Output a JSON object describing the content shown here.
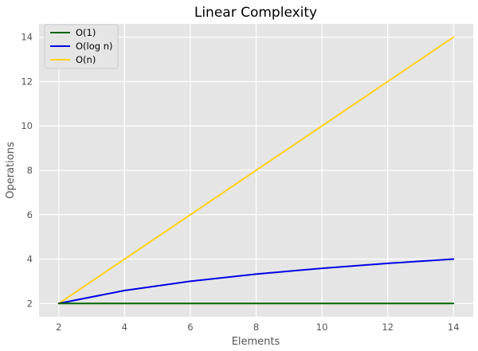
{
  "chart_data": {
    "type": "line",
    "title": "Linear Complexity",
    "xlabel": "Elements",
    "ylabel": "Operations",
    "x": [
      2,
      4,
      6,
      8,
      10,
      12,
      14
    ],
    "xlim": [
      1.4,
      14.6
    ],
    "ylim": [
      1.4,
      14.6
    ],
    "xticks": [
      2,
      4,
      6,
      8,
      10,
      12,
      14
    ],
    "yticks": [
      2,
      4,
      6,
      8,
      10,
      12,
      14
    ],
    "grid": true,
    "legend_position": "top-left",
    "background_color": "#e5e5e5",
    "grid_color": "#ffffff",
    "series": [
      {
        "name": "O(1)",
        "color": "#006400",
        "values": [
          2,
          2,
          2,
          2,
          2,
          2,
          2
        ]
      },
      {
        "name": "O(log n)",
        "color": "#0000e6",
        "values": [
          2,
          2.585,
          3.0,
          3.322,
          3.585,
          3.807,
          4.0
        ]
      },
      {
        "name": "O(n)",
        "color": "#ffd11a",
        "values": [
          2,
          4,
          6,
          8,
          10,
          12,
          14
        ]
      }
    ]
  }
}
